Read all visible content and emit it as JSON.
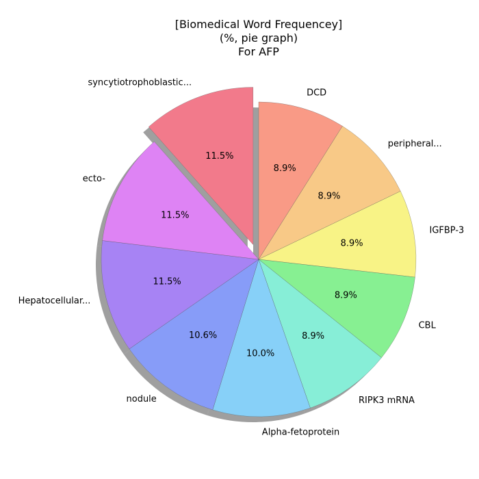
{
  "chart_data": {
    "type": "pie",
    "title": [
      "[Biomedical Word Frequencey]",
      "(%, pie graph)",
      "For AFP"
    ],
    "slices": [
      {
        "label": "DCD",
        "value": 8.9,
        "display": "8.9%",
        "color": "#f99a86",
        "explode": false
      },
      {
        "label": "peripheral...",
        "value": 8.9,
        "display": "8.9%",
        "color": "#f8c987",
        "explode": false
      },
      {
        "label": "IGFBP-3",
        "value": 8.9,
        "display": "8.9%",
        "color": "#f8f386",
        "explode": false
      },
      {
        "label": "CBL",
        "value": 8.9,
        "display": "8.9%",
        "color": "#87f092",
        "explode": false
      },
      {
        "label": "RIPK3 mRNA",
        "value": 8.9,
        "display": "8.9%",
        "color": "#87eed7",
        "explode": false
      },
      {
        "label": "Alpha-fetoprotein",
        "value": 10.0,
        "display": "10.0%",
        "color": "#87d0f8",
        "explode": false
      },
      {
        "label": "nodule",
        "value": 10.6,
        "display": "10.6%",
        "color": "#879cf8",
        "explode": false
      },
      {
        "label": "Hepatocellular...",
        "value": 11.5,
        "display": "11.5%",
        "color": "#a783f4",
        "explode": false
      },
      {
        "label": "ecto-",
        "value": 11.5,
        "display": "11.5%",
        "color": "#de83f4",
        "explode": false
      },
      {
        "label": "syncytiotrophoblastic...",
        "value": 11.5,
        "display": "11.5%",
        "color": "#f27a8b",
        "explode": true
      }
    ],
    "start_angle_deg": 90,
    "direction": "clockwise",
    "shadow": true,
    "legend": "none"
  }
}
